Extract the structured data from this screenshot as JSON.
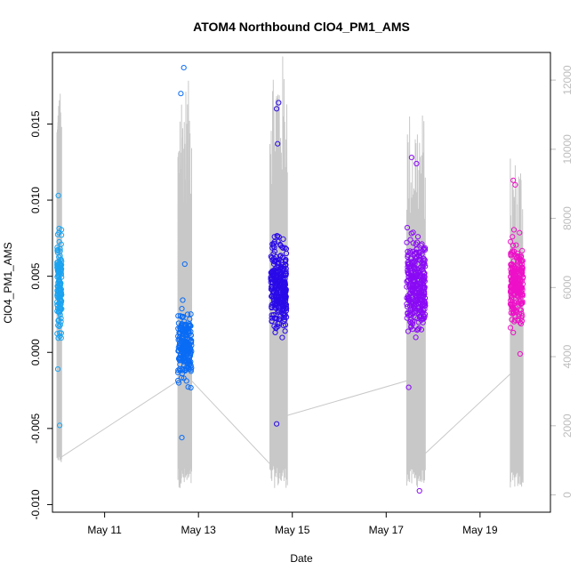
{
  "chart_data": {
    "type": "scatter",
    "title": "ATOM4 Northbound ClO4_PM1_AMS",
    "xlabel": "Date",
    "ylabel": "ClO4_PM1_AMS",
    "x_scale": "date",
    "xlim": [
      "2018-05-09T21:20",
      "2018-05-20T12:00"
    ],
    "ylim": [
      -0.0105,
      0.0197
    ],
    "x_ticks": [
      "May 11",
      "May 13",
      "May 15",
      "May 17",
      "May 19"
    ],
    "x_tick_dates": [
      "2018-05-11",
      "2018-05-13",
      "2018-05-15",
      "2018-05-17",
      "2018-05-19"
    ],
    "y_ticks": [
      "-0.010",
      "-0.005",
      "0.000",
      "0.005",
      "0.010",
      "0.015"
    ],
    "y_tick_values": [
      -0.01,
      -0.005,
      0.0,
      0.005,
      0.01,
      0.015
    ],
    "y2_ticks": [
      "0",
      "2000",
      "4000",
      "6000",
      "8000",
      "10000",
      "12000"
    ],
    "y2_tick_values": [
      0,
      2000,
      4000,
      6000,
      8000,
      10000,
      12000
    ],
    "y2lim": [
      -500,
      12800
    ],
    "grid": false,
    "legend": "none",
    "marker": "open circle",
    "secondary_series_color": "#c8c8c8",
    "groups": [
      {
        "color": "#1aa3f0",
        "x_range": [
          "2018-05-09T23:40",
          "2018-05-10T02:00"
        ],
        "y_center": 0.0045,
        "y_spread": 0.0028,
        "n": 140,
        "outliers": [
          {
            "x": "2018-05-10T01:00",
            "y": -0.0048
          },
          {
            "x": "2018-05-10T00:20",
            "y": 0.0103
          },
          {
            "x": "2018-05-10T00:05",
            "y": -0.0011
          }
        ]
      },
      {
        "color": "#0a6cf5",
        "x_range": [
          "2018-05-12T13:30",
          "2018-05-12T20:30"
        ],
        "y_center": 0.0005,
        "y_spread": 0.002,
        "n": 210,
        "outliers": [
          {
            "x": "2018-05-12T16:30",
            "y": 0.0187
          },
          {
            "x": "2018-05-12T15:00",
            "y": 0.017
          },
          {
            "x": "2018-05-12T15:30",
            "y": -0.0056
          },
          {
            "x": "2018-05-12T17:00",
            "y": 0.0058
          }
        ]
      },
      {
        "color": "#2a0ae8",
        "x_range": [
          "2018-05-14T13:00",
          "2018-05-14T21:00"
        ],
        "y_center": 0.0042,
        "y_spread": 0.0025,
        "n": 300,
        "outliers": [
          {
            "x": "2018-05-14T17:00",
            "y": 0.0164
          },
          {
            "x": "2018-05-14T16:00",
            "y": 0.016
          },
          {
            "x": "2018-05-14T16:30",
            "y": 0.0137
          },
          {
            "x": "2018-05-14T16:00",
            "y": -0.0047
          }
        ]
      },
      {
        "color": "#8a0af5",
        "x_range": [
          "2018-05-17T10:30",
          "2018-05-17T20:00"
        ],
        "y_center": 0.0045,
        "y_spread": 0.0027,
        "n": 300,
        "outliers": [
          {
            "x": "2018-05-17T13:00",
            "y": 0.0128
          },
          {
            "x": "2018-05-17T17:00",
            "y": -0.0091
          },
          {
            "x": "2018-05-17T11:30",
            "y": -0.0023
          },
          {
            "x": "2018-05-17T15:30",
            "y": 0.0124
          }
        ]
      },
      {
        "color": "#ee10c8",
        "x_range": [
          "2018-05-19T15:30",
          "2018-05-19T22:00"
        ],
        "y_center": 0.0045,
        "y_spread": 0.0022,
        "n": 230,
        "outliers": [
          {
            "x": "2018-05-19T17:00",
            "y": 0.0113
          },
          {
            "x": "2018-05-19T18:00",
            "y": 0.011
          },
          {
            "x": "2018-05-19T20:30",
            "y": -0.0001
          }
        ]
      }
    ],
    "secondary_trace": {
      "description_units": "altitude on right axis",
      "flight_legs": [
        {
          "start": "2018-05-09T23:40",
          "end": "2018-05-10T02:00",
          "low": 900,
          "high": 11700
        },
        {
          "start": "2018-05-12T13:30",
          "end": "2018-05-12T20:30",
          "low": 200,
          "high": 12000
        },
        {
          "start": "2018-05-14T12:30",
          "end": "2018-05-14T21:30",
          "low": 200,
          "high": 12800
        },
        {
          "start": "2018-05-17T10:30",
          "end": "2018-05-17T20:00",
          "low": 200,
          "high": 11200
        },
        {
          "start": "2018-05-19T15:30",
          "end": "2018-05-19T22:00",
          "low": 200,
          "high": 9800
        }
      ],
      "connectors": [
        {
          "x": [
            "2018-05-10T02:00",
            "2018-05-12T13:30"
          ],
          "y": [
            1100,
            3300
          ]
        },
        {
          "x": [
            "2018-05-12T20:30",
            "2018-05-14T12:30"
          ],
          "y": [
            3300,
            900
          ]
        },
        {
          "x": [
            "2018-05-14T21:30",
            "2018-05-17T10:30"
          ],
          "y": [
            2300,
            3300
          ]
        },
        {
          "x": [
            "2018-05-17T20:00",
            "2018-05-19T15:30"
          ],
          "y": [
            1200,
            3500
          ]
        }
      ]
    }
  }
}
